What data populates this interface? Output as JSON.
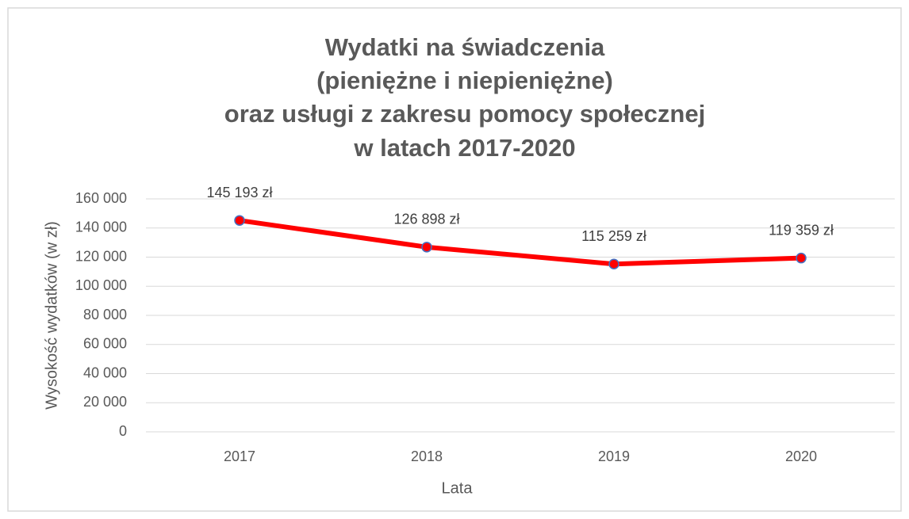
{
  "chart_data": {
    "type": "line",
    "title": [
      "Wydatki na świadczenia",
      "(pieniężne i niepieniężne)",
      "oraz usługi z zakresu pomocy społecznej",
      "w latach 2017-2020"
    ],
    "xlabel": "Lata",
    "ylabel": "Wysokość wydatków (w zł)",
    "categories": [
      "2017",
      "2018",
      "2019",
      "2020"
    ],
    "series": [
      {
        "color": "#ff0000",
        "marker_edge": "#4472c4",
        "values": [
          145193,
          126898,
          115259,
          119359
        ],
        "value_labels": [
          "145 193 zł",
          "126 898 zł",
          "115 259 zł",
          "119 359 zł"
        ]
      }
    ],
    "ylim": [
      0,
      160000
    ],
    "yticks": [
      0,
      {
        "value": 20000,
        "label": "20 000"
      },
      {
        "value": 40000,
        "label": "40 000"
      },
      {
        "value": 60000,
        "label": "60 000"
      },
      {
        "value": 80000,
        "label": "80 000"
      },
      {
        "value": 100000,
        "label": "100 000"
      },
      {
        "value": 120000,
        "label": "120 000"
      },
      {
        "value": 140000,
        "label": "140 000"
      },
      {
        "value": 160000,
        "label": "160 000"
      }
    ],
    "grid": true
  }
}
